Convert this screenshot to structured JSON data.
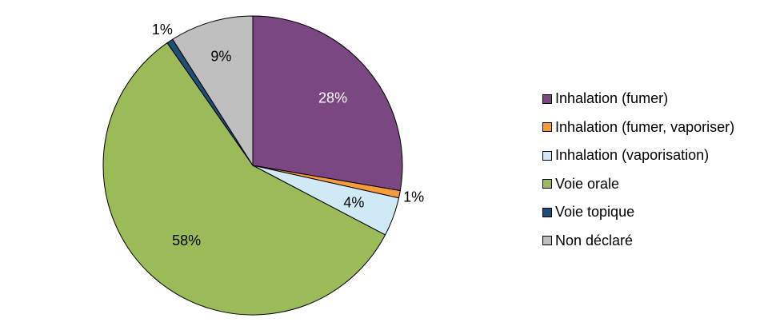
{
  "chart_data": {
    "type": "pie",
    "title": "",
    "start_angle_deg": 0,
    "direction": "clockwise",
    "categories": [
      "Inhalation (fumer)",
      "Inhalation (fumer, vaporiser)",
      "Inhalation (vaporisation)",
      "Voie orale",
      "Voie topique",
      "Non déclaré"
    ],
    "values": [
      27.7,
      0.8,
      4.2,
      57.6,
      0.7,
      9.0
    ],
    "data_labels": [
      "28%",
      "1%",
      "4%",
      "58%",
      "1%",
      "9%"
    ],
    "colors": [
      "#7b4782",
      "#f79a3b",
      "#cfe9f5",
      "#9bbb59",
      "#1f4e79",
      "#bfbfbf"
    ],
    "label_colors": [
      "#ffffff",
      "#000000",
      "#000000",
      "#000000",
      "#000000",
      "#000000"
    ],
    "label_placement": [
      "inside",
      "outside",
      "inside",
      "inside",
      "outside",
      "inside"
    ],
    "legend_position": "right"
  }
}
